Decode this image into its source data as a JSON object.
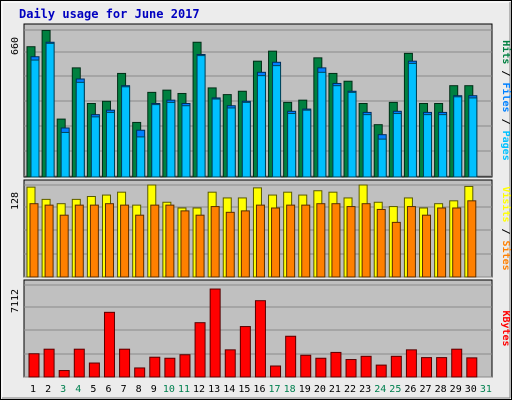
{
  "title": "Daily usage for June 2017",
  "colors": {
    "background": "#ececec",
    "plot_bg": "#c0c0c0",
    "grid": "#8a8a8a",
    "title": "#0000c0",
    "hits": "#008040",
    "files": "#0080ff",
    "pages": "#00c0ff",
    "visits": "#ffff00",
    "sites": "#ff8000",
    "kbytes": "#ff0000",
    "weekend_label": "#00804f",
    "weekday_label": "#000000"
  },
  "chart_data": [
    {
      "type": "bar",
      "panel": "hits-files-pages",
      "categories": [
        "1",
        "2",
        "3",
        "4",
        "5",
        "6",
        "7",
        "8",
        "9",
        "10",
        "11",
        "12",
        "13",
        "14",
        "15",
        "16",
        "17",
        "18",
        "19",
        "20",
        "21",
        "22",
        "23",
        "24",
        "25",
        "26",
        "27",
        "28",
        "29",
        "30",
        "31"
      ],
      "ytick": "660",
      "ylim": [
        0,
        660
      ],
      "right_axis_labels": [
        "Pages",
        "Files",
        "Hits"
      ],
      "series": [
        {
          "name": "Hits",
          "color_key": "hits",
          "values": [
            585,
            658,
            260,
            490,
            330,
            340,
            465,
            245,
            380,
            390,
            375,
            605,
            400,
            370,
            385,
            520,
            565,
            335,
            345,
            535,
            465,
            430,
            330,
            235,
            335,
            555,
            330,
            330,
            410,
            410,
            0
          ]
        },
        {
          "name": "Files",
          "color_key": "files",
          "values": [
            540,
            605,
            220,
            440,
            280,
            300,
            410,
            210,
            330,
            345,
            330,
            550,
            355,
            320,
            340,
            470,
            515,
            295,
            305,
            490,
            420,
            385,
            290,
            190,
            295,
            520,
            290,
            290,
            365,
            365,
            0
          ]
        },
        {
          "name": "Pages",
          "color_key": "pages",
          "values": [
            525,
            600,
            200,
            425,
            270,
            290,
            405,
            180,
            325,
            335,
            320,
            545,
            350,
            310,
            335,
            455,
            500,
            285,
            300,
            470,
            410,
            380,
            280,
            170,
            285,
            510,
            280,
            280,
            360,
            355,
            0
          ]
        }
      ]
    },
    {
      "type": "bar",
      "panel": "visits-sites",
      "categories": [
        "1",
        "2",
        "3",
        "4",
        "5",
        "6",
        "7",
        "8",
        "9",
        "10",
        "11",
        "12",
        "13",
        "14",
        "15",
        "16",
        "17",
        "18",
        "19",
        "20",
        "21",
        "22",
        "23",
        "24",
        "25",
        "26",
        "27",
        "28",
        "29",
        "30",
        "31"
      ],
      "ytick": "128",
      "ylim": [
        0,
        128
      ],
      "right_axis_labels": [
        "Sites",
        "Visits"
      ],
      "series": [
        {
          "name": "Visits",
          "color_key": "visits",
          "values": [
            125,
            108,
            102,
            108,
            112,
            114,
            118,
            100,
            128,
            104,
            96,
            96,
            118,
            110,
            110,
            124,
            114,
            118,
            114,
            120,
            118,
            110,
            128,
            104,
            98,
            110,
            96,
            102,
            106,
            126,
            0
          ]
        },
        {
          "name": "Sites",
          "color_key": "sites",
          "values": [
            102,
            100,
            86,
            100,
            100,
            102,
            100,
            86,
            100,
            100,
            92,
            86,
            98,
            90,
            92,
            100,
            96,
            100,
            100,
            102,
            102,
            98,
            102,
            94,
            76,
            98,
            86,
            96,
            96,
            106,
            0
          ]
        }
      ]
    },
    {
      "type": "bar",
      "panel": "kbytes",
      "categories": [
        "1",
        "2",
        "3",
        "4",
        "5",
        "6",
        "7",
        "8",
        "9",
        "10",
        "11",
        "12",
        "13",
        "14",
        "15",
        "16",
        "17",
        "18",
        "19",
        "20",
        "21",
        "22",
        "23",
        "24",
        "25",
        "26",
        "27",
        "28",
        "29",
        "30",
        "31"
      ],
      "ytick": "7112",
      "ylim": [
        0,
        7112
      ],
      "right_axis_labels": [
        "KBytes"
      ],
      "series": [
        {
          "name": "KBytes",
          "color_key": "kbytes",
          "values": [
            1800,
            2150,
            500,
            2150,
            1080,
            5000,
            2150,
            700,
            1530,
            1450,
            1720,
            4200,
            6800,
            2100,
            3900,
            5900,
            850,
            3150,
            1680,
            1450,
            1900,
            1350,
            1600,
            920,
            1600,
            2100,
            1500,
            1500,
            2150,
            1480,
            0
          ]
        }
      ]
    }
  ]
}
